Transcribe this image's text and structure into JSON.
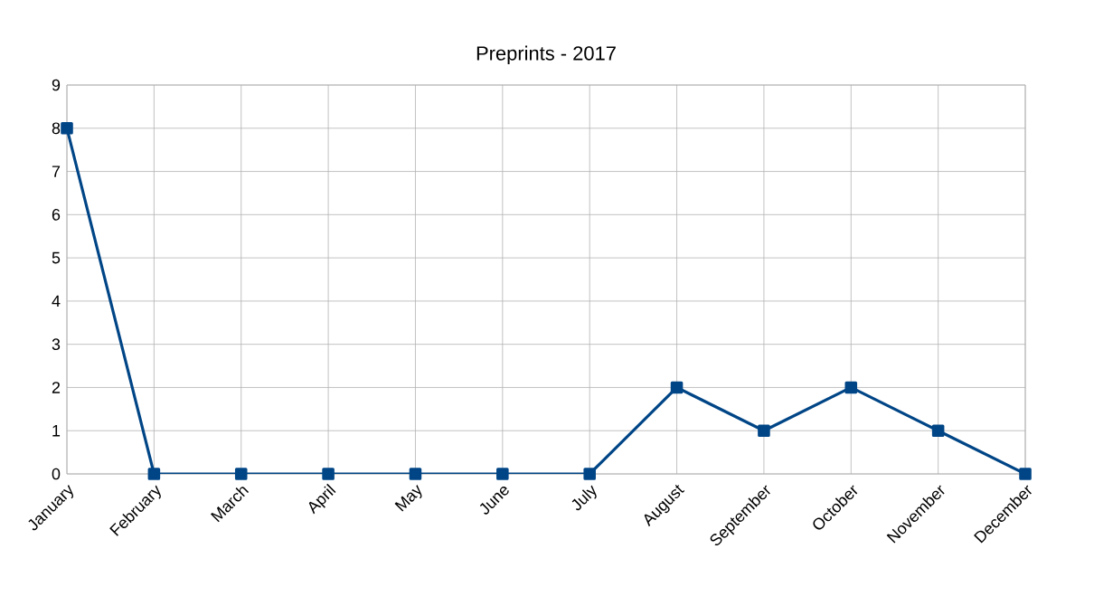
{
  "chart_data": {
    "type": "line",
    "title": "Preprints - 2017",
    "categories": [
      "January",
      "February",
      "March",
      "April",
      "May",
      "June",
      "July",
      "August",
      "September",
      "October",
      "November",
      "December"
    ],
    "series": [
      {
        "color": "#004586",
        "values": [
          8,
          0,
          0,
          0,
          0,
          0,
          0,
          2,
          1,
          2,
          1,
          0
        ]
      }
    ],
    "ylim": [
      0,
      9
    ],
    "yticks": [
      0,
      1,
      2,
      3,
      4,
      5,
      6,
      7,
      8,
      9
    ],
    "grid": true,
    "marker": "square",
    "line_style": "solid"
  }
}
